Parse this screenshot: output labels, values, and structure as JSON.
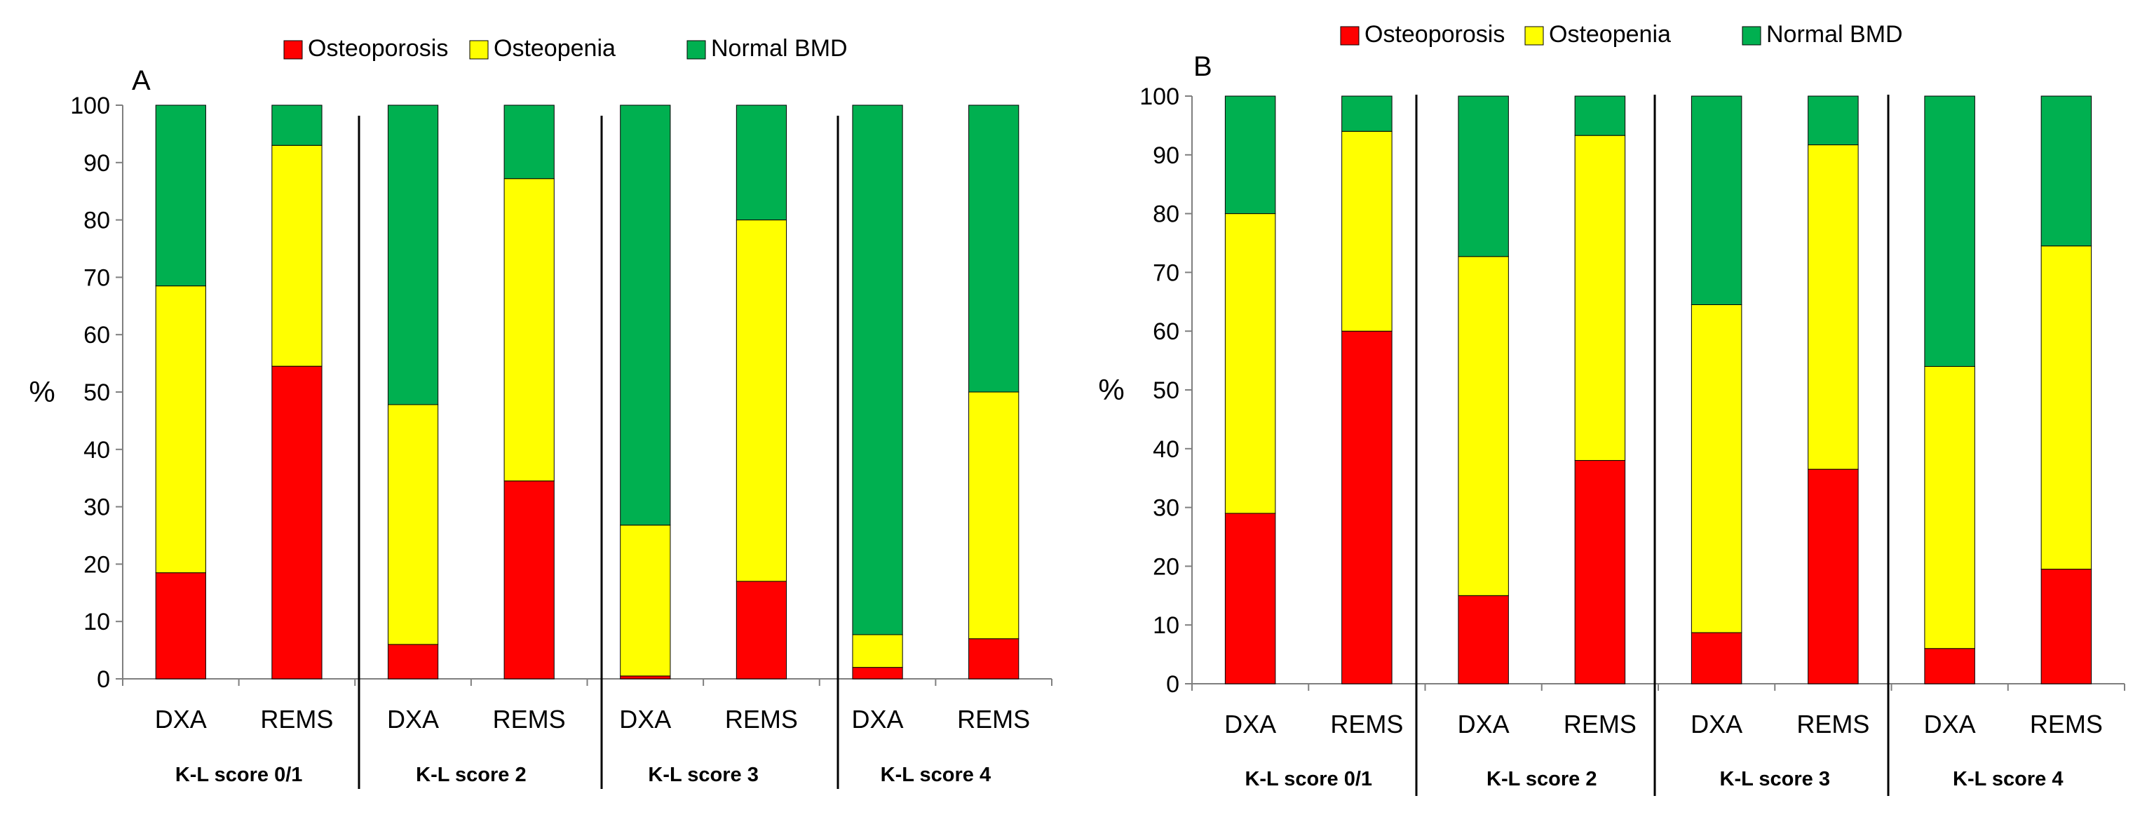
{
  "colors": {
    "osteoporosis": "#ff0000",
    "osteopenia": "#ffff00",
    "normal": "#00b050",
    "outline": "#000000",
    "axis": "#7f7f7f"
  },
  "chart_data": [
    {
      "type": "bar",
      "stacked": true,
      "panel_label": "A",
      "ylabel": "%",
      "ylim": [
        0,
        100
      ],
      "yticks": [
        "0",
        "10",
        "20",
        "30",
        "40",
        "50",
        "60",
        "70",
        "80",
        "90",
        "100"
      ],
      "legend": [
        "Osteoporosis",
        "Osteopenia",
        "Normal BMD"
      ],
      "groups": [
        "K-L score 0/1",
        "K-L score 2",
        "K-L score 3",
        "K-L score 4"
      ],
      "categories": [
        "DXA",
        "REMS",
        "DXA",
        "REMS",
        "DXA",
        "REMS",
        "DXA",
        "REMS"
      ],
      "series": [
        {
          "name": "Osteoporosis",
          "values": [
            18.5,
            54.5,
            6,
            34.5,
            0.5,
            17,
            2,
            7
          ]
        },
        {
          "name": "Osteopenia",
          "values": [
            50,
            38.5,
            41.8,
            52.7,
            26.3,
            63,
            5.7,
            43
          ]
        },
        {
          "name": "Normal BMD",
          "values": [
            31.5,
            7,
            52.2,
            12.8,
            73.2,
            20,
            92.3,
            50
          ]
        }
      ]
    },
    {
      "type": "bar",
      "stacked": true,
      "panel_label": "B",
      "ylabel": "%",
      "ylim": [
        0,
        100
      ],
      "yticks": [
        "0",
        "10",
        "20",
        "30",
        "40",
        "50",
        "60",
        "70",
        "80",
        "90",
        "100"
      ],
      "legend": [
        "Osteoporosis",
        "Osteopenia",
        "Normal BMD"
      ],
      "groups": [
        "K-L score 0/1",
        "K-L score 2",
        "K-L score 3",
        "K-L score 4"
      ],
      "categories": [
        "DXA",
        "REMS",
        "DXA",
        "REMS",
        "DXA",
        "REMS",
        "DXA",
        "REMS"
      ],
      "series": [
        {
          "name": "Osteoporosis",
          "values": [
            29,
            60,
            15,
            38,
            8.7,
            36.5,
            6,
            19.5
          ]
        },
        {
          "name": "Osteopenia",
          "values": [
            51,
            34,
            57.7,
            55.3,
            55.8,
            55.2,
            48,
            55
          ]
        },
        {
          "name": "Normal BMD",
          "values": [
            20,
            6,
            27.3,
            6.7,
            35.5,
            8.3,
            46,
            25.5
          ]
        }
      ]
    }
  ]
}
